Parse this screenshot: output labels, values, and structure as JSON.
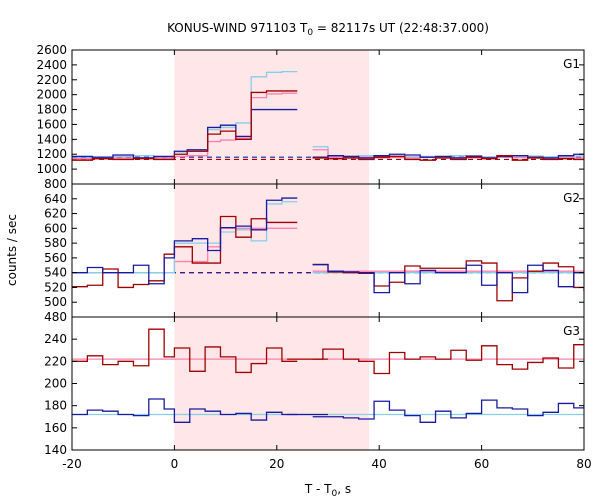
{
  "chart_data": {
    "type": "line",
    "title": {
      "prefix": "KONUS-WIND 971103 T",
      "sub": "0",
      "suffix": " = 82117s UT (22:48:37.000)"
    },
    "xlabel": {
      "prefix": "T - T",
      "sub": "0",
      "suffix": ", s"
    },
    "ylabel": "counts / sec",
    "xlim": [
      -20,
      80
    ],
    "x_ticks": [
      -20,
      0,
      20,
      40,
      60,
      80
    ],
    "x_tick_labels": [
      "-20",
      "0",
      "20",
      "40",
      "60",
      "80"
    ],
    "shaded_interval": [
      0,
      38
    ],
    "colors": {
      "dark_red": "#a00000",
      "pink": "#ff80b0",
      "dark_blue": "#1a1aa0",
      "light_blue": "#87ceeb",
      "shade": "#ffe6e8"
    },
    "panels": [
      {
        "label": "G1",
        "ylim": [
          800,
          2600
        ],
        "y_ticks": [
          800,
          1000,
          1200,
          1400,
          1600,
          1800,
          2000,
          2200,
          2400,
          2600
        ],
        "y_tick_labels": [
          "800",
          "1000",
          "1200",
          "1400",
          "1600",
          "1800",
          "2000",
          "2200",
          "2400",
          "2600"
        ],
        "background": [
          {
            "name": "",
            "color": "dark_red",
            "dash": "5,4",
            "level": 1130
          },
          {
            "name": "",
            "color": "dark_blue",
            "dash": "5,4",
            "level": 1160
          }
        ],
        "series": [
          {
            "name": "",
            "color": "light_blue",
            "segments": [
              {
                "x": [
                  -20,
                  -16,
                  -12,
                  -8,
                  -4,
                  0,
                  2.5,
                  6.5,
                  9,
                  12,
                  15,
                  18,
                  21
                ],
                "y": [
                  1150,
                  1160,
                  1170,
                  1180,
                  1150,
                  1230,
                  1240,
                  1530,
                  1560,
                  1620,
                  2240,
                  2300,
                  2310
                ]
              },
              {
                "x": [
                  27,
                  30,
                  33,
                  36,
                  39,
                  42,
                  45,
                  48,
                  51,
                  54,
                  57,
                  60,
                  63,
                  66,
                  69,
                  72,
                  75,
                  78,
                  80
                ],
                "y": [
                  1300,
                  1180,
                  1170,
                  1180,
                  1170,
                  1175,
                  1165,
                  1170,
                  1160,
                  1180,
                  1170,
                  1165,
                  1170,
                  1160,
                  1175,
                  1165,
                  1170,
                  1175,
                  1175
                ]
              }
            ]
          },
          {
            "name": "",
            "color": "pink",
            "segments": [
              {
                "x": [
                  -20,
                  -16,
                  -12,
                  -8,
                  -4,
                  0,
                  2.5,
                  6.5,
                  9,
                  12,
                  15,
                  18,
                  21
                ],
                "y": [
                  1140,
                  1140,
                  1150,
                  1150,
                  1150,
                  1170,
                  1180,
                  1370,
                  1390,
                  1420,
                  1960,
                  2010,
                  2020
                ]
              },
              {
                "x": [
                  27,
                  30,
                  33,
                  36,
                  39,
                  42,
                  45,
                  48,
                  51,
                  54,
                  57,
                  60,
                  63,
                  66,
                  69,
                  72,
                  75,
                  78,
                  80
                ],
                "y": [
                  1260,
                  1160,
                  1150,
                  1160,
                  1150,
                  1155,
                  1150,
                  1160,
                  1150,
                  1155,
                  1150,
                  1155,
                  1160,
                  1155,
                  1150,
                  1150,
                  1155,
                  1150,
                  1150
                ]
              }
            ]
          },
          {
            "name": "",
            "color": "dark_blue",
            "segments": [
              {
                "x": [
                  -20,
                  -16,
                  -12,
                  -8,
                  -4,
                  0,
                  2.5,
                  6.5,
                  9,
                  12,
                  15,
                  18,
                  21
                ],
                "y": [
                  1170,
                  1160,
                  1190,
                  1150,
                  1170,
                  1240,
                  1260,
                  1560,
                  1590,
                  1440,
                  1800,
                  1800,
                  1800
                ]
              },
              {
                "x": [
                  27,
                  30,
                  33,
                  36,
                  39,
                  42,
                  45,
                  48,
                  51,
                  54,
                  57,
                  60,
                  63,
                  66,
                  69,
                  72,
                  75,
                  78,
                  80
                ],
                "y": [
                  1160,
                  1180,
                  1170,
                  1150,
                  1180,
                  1200,
                  1190,
                  1160,
                  1170,
                  1150,
                  1175,
                  1150,
                  1170,
                  1180,
                  1160,
                  1150,
                  1180,
                  1200,
                  1200
                ]
              }
            ]
          },
          {
            "name": "",
            "color": "dark_red",
            "segments": [
              {
                "x": [
                  -20,
                  -16,
                  -12,
                  -8,
                  -4,
                  0,
                  2.5,
                  6.5,
                  9,
                  12,
                  15,
                  18,
                  21
                ],
                "y": [
                  1120,
                  1140,
                  1130,
                  1140,
                  1130,
                  1200,
                  1240,
                  1470,
                  1510,
                  1400,
                  2030,
                  2050,
                  2050
                ]
              },
              {
                "x": [
                  27,
                  30,
                  33,
                  36,
                  39,
                  42,
                  45,
                  48,
                  51,
                  54,
                  57,
                  60,
                  63,
                  66,
                  69,
                  72,
                  75,
                  78,
                  80
                ],
                "y": [
                  1150,
                  1140,
                  1150,
                  1130,
                  1160,
                  1170,
                  1130,
                  1120,
                  1150,
                  1130,
                  1160,
                  1140,
                  1180,
                  1120,
                  1150,
                  1130,
                  1140,
                  1130,
                  1130
                ]
              }
            ]
          }
        ]
      },
      {
        "label": "G2",
        "ylim": [
          480,
          660
        ],
        "y_ticks": [
          480,
          500,
          520,
          540,
          560,
          580,
          600,
          620,
          640
        ],
        "y_tick_labels": [
          "480",
          "500",
          "520",
          "540",
          "560",
          "580",
          "600",
          "620",
          "640"
        ],
        "background": [
          {
            "name": "",
            "color": "dark_red",
            "dash": "5,4",
            "level": 540
          },
          {
            "name": "",
            "color": "dark_blue",
            "dash": "5,4",
            "level": 540
          }
        ],
        "series": [
          {
            "name": "",
            "color": "pink",
            "segments": [
              {
                "x": [
                  -20,
                  0,
                  6.5,
                  9,
                  12,
                  15,
                  18,
                  21
                ],
                "y": [
                  540,
                  555,
                  575,
                  600,
                  600,
                  600,
                  600,
                  600
                ]
              },
              {
                "x": [
                  27,
                  80
                ],
                "y": [
                  542,
                  542
                ]
              }
            ]
          },
          {
            "name": "",
            "color": "light_blue",
            "segments": [
              {
                "x": [
                  -20,
                  0,
                  6.5,
                  9,
                  12,
                  15,
                  18,
                  21
                ],
                "y": [
                  540,
                  580,
                  580,
                  595,
                  598,
                  583,
                  633,
                  636
                ]
              },
              {
                "x": [
                  27,
                  80
                ],
                "y": [
                  540,
                  540
                ]
              }
            ]
          },
          {
            "name": "",
            "color": "dark_red",
            "segments": [
              {
                "x": [
                  -20,
                  -17,
                  -14,
                  -11,
                  -8,
                  -5,
                  -2,
                  0,
                  3.5,
                  6.5,
                  9,
                  12,
                  15,
                  18,
                  21
                ],
                "y": [
                  521,
                  523,
                  545,
                  520,
                  524,
                  529,
                  565,
                  575,
                  553,
                  553,
                  616,
                  588,
                  613,
                  608,
                  608
                ]
              },
              {
                "x": [
                  27,
                  30,
                  33,
                  36,
                  39,
                  42,
                  45,
                  48,
                  51,
                  54,
                  57,
                  60,
                  63,
                  66,
                  69,
                  72,
                  75,
                  78,
                  80
                ],
                "y": [
                  551,
                  541,
                  540,
                  539,
                  522,
                  527,
                  549,
                  546,
                  546,
                  546,
                  556,
                  553,
                  502,
                  533,
                  542,
                  553,
                  548,
                  520,
                  516
                ]
              }
            ]
          },
          {
            "name": "",
            "color": "dark_blue",
            "segments": [
              {
                "x": [
                  -20,
                  -17,
                  -14,
                  -11,
                  -8,
                  -5,
                  -2,
                  0,
                  3.5,
                  6.5,
                  9,
                  12,
                  15,
                  18,
                  21
                ],
                "y": [
                  540,
                  547,
                  540,
                  540,
                  550,
                  525,
                  560,
                  583,
                  586,
                  570,
                  601,
                  603,
                  598,
                  638,
                  641
                ]
              },
              {
                "x": [
                  27,
                  30,
                  33,
                  36,
                  39,
                  42,
                  45,
                  48,
                  51,
                  54,
                  57,
                  60,
                  63,
                  66,
                  69,
                  72,
                  75,
                  78,
                  80
                ],
                "y": [
                  551,
                  542,
                  541,
                  540,
                  513,
                  540,
                  525,
                  543,
                  540,
                  540,
                  550,
                  523,
                  540,
                  513,
                  550,
                  543,
                  521,
                  540,
                  540
                ]
              }
            ]
          }
        ]
      },
      {
        "label": "G3",
        "ylim": [
          140,
          260
        ],
        "y_ticks": [
          140,
          160,
          180,
          200,
          220,
          240
        ],
        "y_tick_labels": [
          "140",
          "160",
          "180",
          "200",
          "220",
          "240"
        ],
        "background": [
          {
            "name": "",
            "color": "pink",
            "dash": "",
            "level": 222
          },
          {
            "name": "",
            "color": "light_blue",
            "dash": "",
            "level": 172
          }
        ],
        "series": [
          {
            "name": "",
            "color": "dark_red",
            "segments": [
              {
                "x": [
                  -20,
                  -17,
                  -14,
                  -11,
                  -8,
                  -5,
                  -2,
                  0,
                  3,
                  6,
                  9,
                  12,
                  15,
                  18,
                  21
                ],
                "y": [
                  220,
                  225,
                  217,
                  220,
                  216,
                  249,
                  224,
                  232,
                  211,
                  233,
                  224,
                  210,
                  218,
                  232,
                  220
                ]
              },
              {
                "x": [
                  22,
                  26
                ],
                "y": [
                  222,
                  222
                ]
              },
              {
                "x": [
                  27,
                  29,
                  33,
                  36,
                  39,
                  42,
                  45,
                  48,
                  51,
                  54,
                  57,
                  60,
                  63,
                  66,
                  69,
                  72,
                  75,
                  78,
                  80
                ],
                "y": [
                  222,
                  231,
                  222,
                  220,
                  209,
                  228,
                  222,
                  224,
                  222,
                  230,
                  221,
                  234,
                  217,
                  213,
                  219,
                  223,
                  214,
                  235,
                  235
                ]
              }
            ]
          },
          {
            "name": "",
            "color": "dark_blue",
            "segments": [
              {
                "x": [
                  -20,
                  -17,
                  -14,
                  -11,
                  -8,
                  -5,
                  -2,
                  0,
                  3,
                  6,
                  9,
                  12,
                  15,
                  18,
                  21
                ],
                "y": [
                  172,
                  176,
                  175,
                  172,
                  171,
                  186,
                  177,
                  165,
                  177,
                  175,
                  172,
                  173,
                  167,
                  174,
                  172
                ]
              },
              {
                "x": [
                  22,
                  26
                ],
                "y": [
                  172,
                  172
                ]
              },
              {
                "x": [
                  27,
                  29,
                  33,
                  36,
                  39,
                  42,
                  45,
                  48,
                  51,
                  54,
                  57,
                  60,
                  63,
                  66,
                  69,
                  72,
                  75,
                  78,
                  80
                ],
                "y": [
                  170,
                  170,
                  169,
                  168,
                  184,
                  176,
                  171,
                  165,
                  175,
                  169,
                  173,
                  185,
                  178,
                  177,
                  171,
                  174,
                  182,
                  178,
                  180
                ]
              }
            ]
          }
        ]
      }
    ]
  }
}
